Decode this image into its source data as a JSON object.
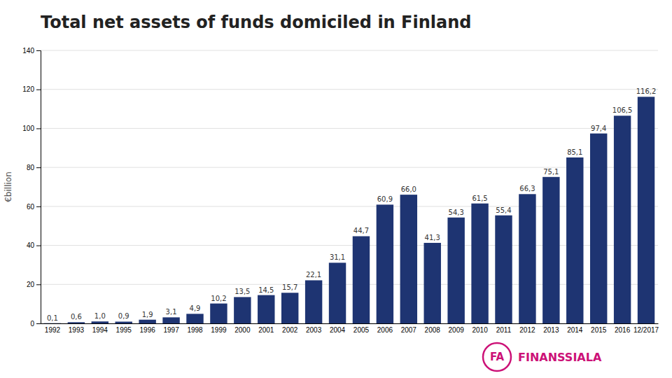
{
  "chart_data": {
    "type": "bar",
    "title": "Total net assets of funds domiciled in Finland",
    "ylabel": "€billion",
    "categories": [
      "1992",
      "1993",
      "1994",
      "1995",
      "1996",
      "1997",
      "1998",
      "1999",
      "2000",
      "2001",
      "2002",
      "2003",
      "2004",
      "2005",
      "2006",
      "2007",
      "2008",
      "2009",
      "2010",
      "2011",
      "2012",
      "2013",
      "2014",
      "2015",
      "2016",
      "12/2017"
    ],
    "values": [
      0.1,
      0.6,
      1.0,
      0.9,
      1.9,
      3.1,
      4.9,
      10.2,
      13.5,
      14.5,
      15.7,
      22.1,
      31.1,
      44.7,
      60.9,
      66.0,
      41.3,
      54.3,
      61.5,
      55.4,
      66.3,
      75.1,
      85.1,
      97.4,
      106.5,
      116.2
    ],
    "value_labels": [
      "0,1",
      "0,6",
      "1,0",
      "0,9",
      "1,9",
      "3,1",
      "4,9",
      "10,2",
      "13,5",
      "14,5",
      "15,7",
      "22,1",
      "31,1",
      "44,7",
      "60,9",
      "66,0",
      "41,3",
      "54,3",
      "61,5",
      "55,4",
      "66,3",
      "75,1",
      "85,1",
      "97,4",
      "106,5",
      "116,2"
    ],
    "color": "#1e3472",
    "ylim": [
      0,
      140
    ],
    "yticks": [
      0,
      20,
      40,
      60,
      80,
      100,
      120,
      140
    ],
    "grid": true,
    "data_labels": true,
    "annotations": [
      {
        "text": "FA",
        "color": "#cc1177"
      },
      {
        "text": "FINANSSIALA",
        "color": "#cc1177"
      }
    ]
  }
}
